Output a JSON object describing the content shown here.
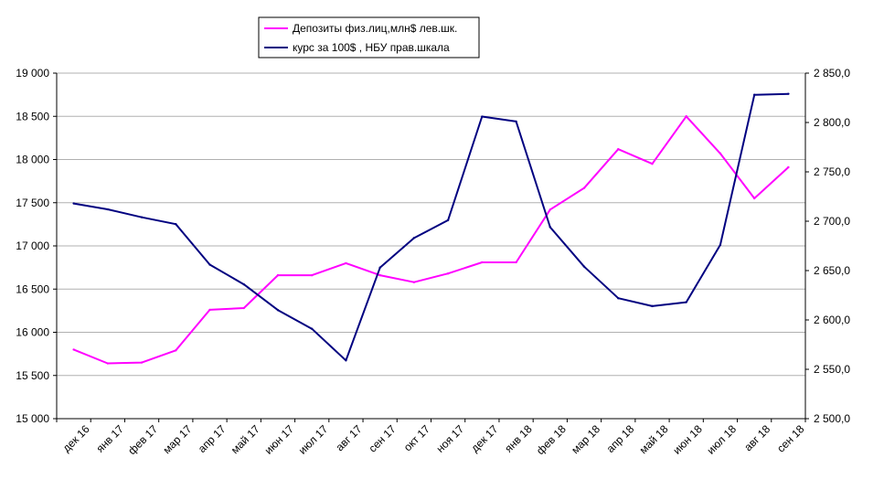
{
  "chart_data": {
    "type": "line",
    "categories": [
      "дек 16",
      "янв 17",
      "фев 17",
      "мар 17",
      "апр 17",
      "май 17",
      "июн 17",
      "июл 17",
      "авг 17",
      "сен 17",
      "окт 17",
      "ноя 17",
      "дек 17",
      "янв 18",
      "фев 18",
      "мар 18",
      "апр 18",
      "май 18",
      "июн 18",
      "июл 18",
      "авг 18",
      "сен 18"
    ],
    "series": [
      {
        "name": "Депозиты физ.лиц,млн$ лев.шк.",
        "axis": "left",
        "color": "#ff00ff",
        "values": [
          15800,
          15640,
          15650,
          15790,
          16260,
          16280,
          16660,
          16660,
          16800,
          16660,
          16580,
          16680,
          16810,
          16810,
          17420,
          17670,
          18120,
          17950,
          18500,
          18070,
          17550,
          17910
        ]
      },
      {
        "name": "курс за 100$ , НБУ прав.шкала",
        "axis": "right",
        "color": "#000080",
        "values": [
          2718.0,
          2712.0,
          2704.0,
          2697.0,
          2656.0,
          2636.0,
          2610.0,
          2591.0,
          2559.0,
          2653.0,
          2683.0,
          2701.0,
          2806.0,
          2801.0,
          2694.0,
          2654.0,
          2622.0,
          2614.0,
          2618.0,
          2676.0,
          2828.0,
          2829.0
        ]
      }
    ],
    "y_left": {
      "ylim": [
        15000,
        19000
      ],
      "ticks": [
        "15 000",
        "15 500",
        "16 000",
        "16 500",
        "17 000",
        "17 500",
        "18 000",
        "18 500",
        "19 000"
      ]
    },
    "y_right": {
      "ylim": [
        2500,
        2850
      ],
      "ticks": [
        "2 500,0",
        "2 550,0",
        "2 600,0",
        "2 650,0",
        "2 700,0",
        "2 750,0",
        "2 800,0",
        "2 850,0"
      ]
    },
    "grid": "horizontal",
    "legend": "top-left"
  }
}
